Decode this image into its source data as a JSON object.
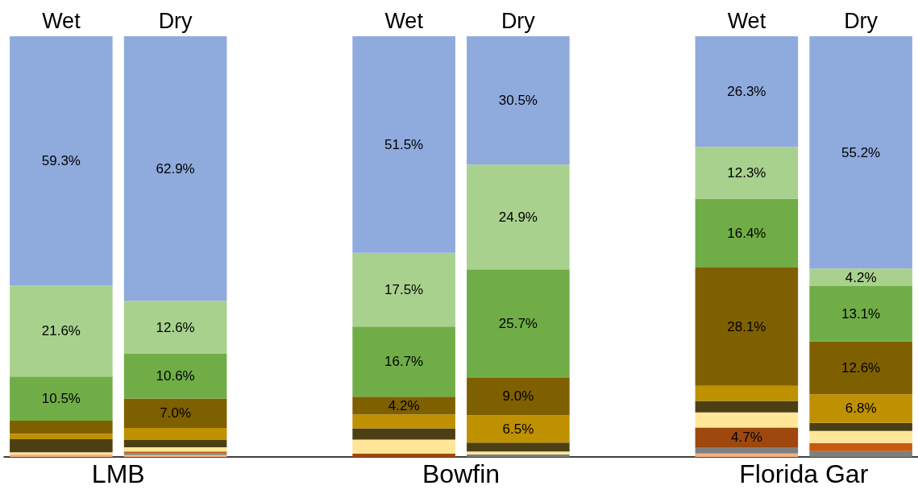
{
  "chart_data": {
    "type": "bar",
    "stacked": true,
    "categories": [
      "Wet",
      "Dry",
      null,
      "Wet",
      "Dry",
      null,
      "Wet",
      "Dry"
    ],
    "annotations": [
      "LMB",
      "Bowfin",
      "Florida Gar"
    ],
    "series": [
      {
        "color": "#f4b183",
        "values": [
          0.6,
          0.5,
          null,
          null,
          null,
          null,
          0.8,
          null
        ]
      },
      {
        "color": "#7f7f7f",
        "values": [
          null,
          0.4,
          null,
          null,
          0.6,
          null,
          1.5,
          1.4
        ]
      },
      {
        "color": "#c55a11",
        "values": [
          null,
          0.4,
          null,
          null,
          null,
          null,
          null,
          1.9
        ]
      },
      {
        "color": "#9e480e",
        "values": [
          null,
          null,
          null,
          0.8,
          null,
          null,
          4.7,
          null
        ],
        "value_labels": [
          null,
          null,
          null,
          null,
          null,
          null,
          "4.7%",
          null
        ]
      },
      {
        "color": "#ffe699",
        "values": [
          0.5,
          1.0,
          null,
          3.3,
          0.7,
          null,
          3.6,
          2.9
        ]
      },
      {
        "color": "#4d3f14",
        "values": [
          3.1,
          1.7,
          null,
          2.7,
          2.1,
          null,
          2.7,
          1.9
        ]
      },
      {
        "color": "#bf9000",
        "values": [
          1.3,
          2.9,
          null,
          3.3,
          6.5,
          null,
          3.6,
          6.8
        ],
        "value_labels": [
          null,
          null,
          null,
          null,
          "6.5%",
          null,
          null,
          "6.8%"
        ]
      },
      {
        "color": "#7f6000",
        "values": [
          3.1,
          7.0,
          null,
          4.2,
          9.0,
          null,
          28.1,
          12.6
        ],
        "value_labels": [
          null,
          "7.0%",
          null,
          "4.2%",
          "9.0%",
          null,
          "28.1%",
          "12.6%"
        ]
      },
      {
        "color": "#70ad47",
        "values": [
          10.5,
          10.6,
          null,
          16.7,
          25.7,
          null,
          16.4,
          13.1
        ],
        "value_labels": [
          "10.5%",
          "10.6%",
          null,
          "16.7%",
          "25.7%",
          null,
          "16.4%",
          "13.1%"
        ]
      },
      {
        "color": "#a9d18e",
        "values": [
          21.6,
          12.6,
          null,
          17.5,
          24.9,
          null,
          12.3,
          4.2
        ],
        "value_labels": [
          "21.6%",
          "12.6%",
          null,
          "17.5%",
          "24.9%",
          null,
          "12.3%",
          "4.2%"
        ]
      },
      {
        "color": "#8faadc",
        "values": [
          59.3,
          62.9,
          null,
          51.5,
          30.5,
          null,
          26.3,
          55.2
        ],
        "value_labels": [
          "59.3%",
          "62.9%",
          null,
          "51.5%",
          "30.5%",
          null,
          "26.3%",
          "55.2%"
        ]
      }
    ]
  }
}
